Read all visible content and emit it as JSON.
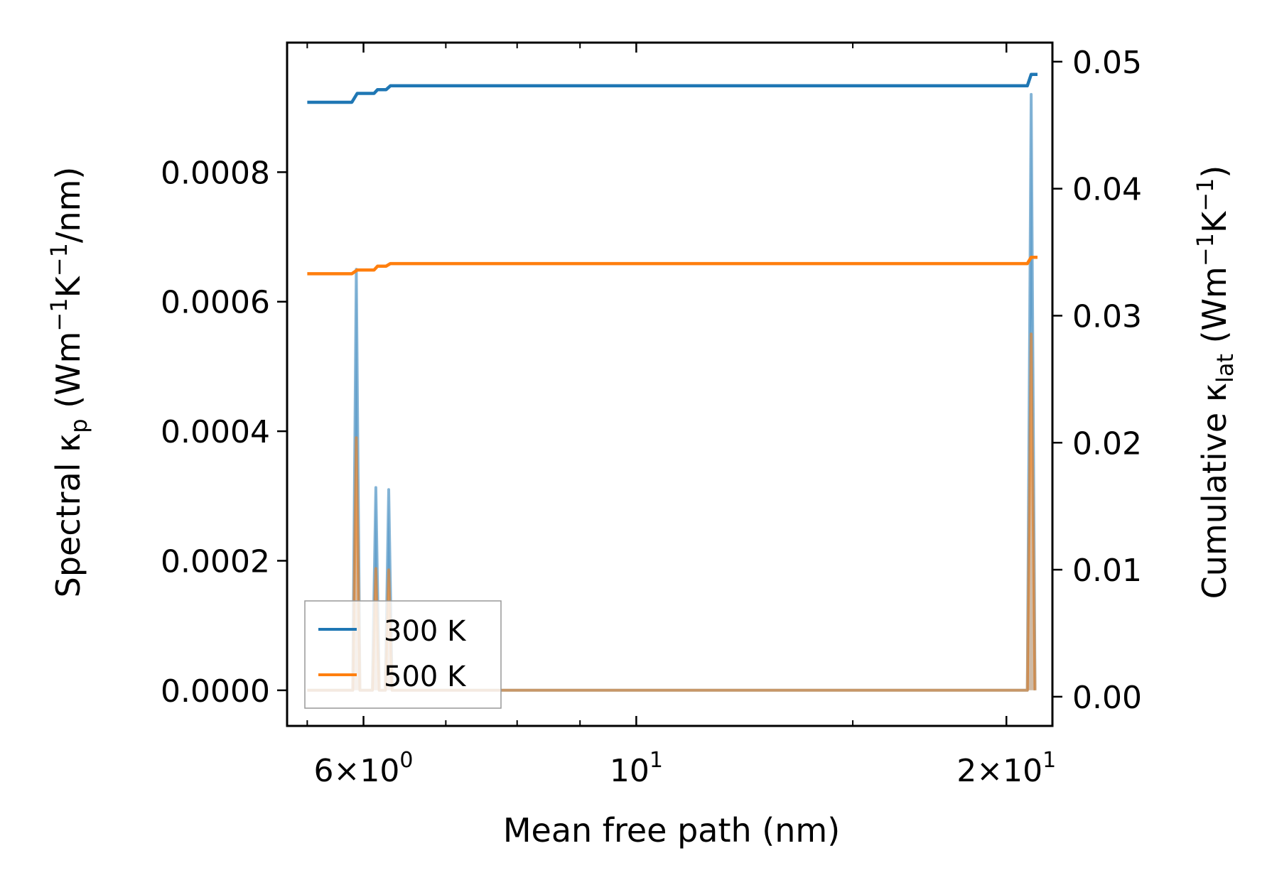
{
  "chart_data": {
    "type": "line",
    "xlabel": "Mean free path (nm)",
    "xscale": "log",
    "xlim": [
      5.2,
      21.8
    ],
    "x_ticks": [
      {
        "value": 6,
        "mantissa": "6",
        "exponent": "0"
      },
      {
        "value": 10,
        "mantissa": "",
        "exponent": "1"
      },
      {
        "value": 20,
        "mantissa": "2",
        "exponent": "1"
      }
    ],
    "x_minor_ticks": [
      5.4,
      7,
      8,
      9,
      15
    ],
    "y_left": {
      "label_prefix": "Spectral κ",
      "label_sub": "p",
      "label_suffix": " (Wm",
      "label_exp1": "−1",
      "label_mid": "K",
      "label_exp2": "−1",
      "label_end": "/nm)",
      "lim": [
        -5.5e-05,
        0.001
      ],
      "ticks": [
        "0.0000",
        "0.0002",
        "0.0004",
        "0.0006",
        "0.0008"
      ]
    },
    "y_right": {
      "label_prefix": "Cumulative κ",
      "label_sub": "lat",
      "label_suffix": " (Wm",
      "label_exp1": "−1",
      "label_mid": "K",
      "label_exp2": "−1",
      "label_end": ")",
      "lim": [
        -0.0023,
        0.0515
      ],
      "ticks": [
        "0.00",
        "0.01",
        "0.02",
        "0.03",
        "0.04",
        "0.05"
      ]
    },
    "series": [
      {
        "name": "300 K",
        "color": "#1f77b4",
        "spectral": [
          {
            "x": 5.4,
            "y": 0.0
          },
          {
            "x": 5.88,
            "y": 0.0
          },
          {
            "x": 5.92,
            "y": 0.00065
          },
          {
            "x": 5.96,
            "y": 0.0
          },
          {
            "x": 6.1,
            "y": 0.0
          },
          {
            "x": 6.14,
            "y": 0.000313
          },
          {
            "x": 6.18,
            "y": 0.0
          },
          {
            "x": 6.25,
            "y": 0.0
          },
          {
            "x": 6.29,
            "y": 0.00031
          },
          {
            "x": 6.33,
            "y": 0.0
          },
          {
            "x": 20.8,
            "y": 0.0
          },
          {
            "x": 20.95,
            "y": 0.00092
          },
          {
            "x": 21.1,
            "y": 0.0
          }
        ],
        "cumulative": [
          {
            "x": 5.4,
            "y": 0.0468
          },
          {
            "x": 5.87,
            "y": 0.0468
          },
          {
            "x": 5.93,
            "y": 0.0475
          },
          {
            "x": 6.12,
            "y": 0.0475
          },
          {
            "x": 6.16,
            "y": 0.0478
          },
          {
            "x": 6.26,
            "y": 0.0478
          },
          {
            "x": 6.31,
            "y": 0.0481
          },
          {
            "x": 20.8,
            "y": 0.0481
          },
          {
            "x": 20.95,
            "y": 0.049
          },
          {
            "x": 21.2,
            "y": 0.049
          }
        ]
      },
      {
        "name": "500 K",
        "color": "#ff7f0e",
        "spectral": [
          {
            "x": 5.4,
            "y": 0.0
          },
          {
            "x": 5.88,
            "y": 0.0
          },
          {
            "x": 5.92,
            "y": 0.00039
          },
          {
            "x": 5.96,
            "y": 0.0
          },
          {
            "x": 6.1,
            "y": 0.0
          },
          {
            "x": 6.14,
            "y": 0.000188
          },
          {
            "x": 6.18,
            "y": 0.0
          },
          {
            "x": 6.25,
            "y": 0.0
          },
          {
            "x": 6.29,
            "y": 0.000186
          },
          {
            "x": 6.33,
            "y": 0.0
          },
          {
            "x": 20.8,
            "y": 0.0
          },
          {
            "x": 20.95,
            "y": 0.00055
          },
          {
            "x": 21.1,
            "y": 0.0
          }
        ],
        "cumulative": [
          {
            "x": 5.4,
            "y": 0.0333
          },
          {
            "x": 5.87,
            "y": 0.0333
          },
          {
            "x": 5.93,
            "y": 0.0336
          },
          {
            "x": 6.12,
            "y": 0.0336
          },
          {
            "x": 6.16,
            "y": 0.0339
          },
          {
            "x": 6.26,
            "y": 0.0339
          },
          {
            "x": 6.31,
            "y": 0.0341
          },
          {
            "x": 20.8,
            "y": 0.0341
          },
          {
            "x": 20.95,
            "y": 0.0346
          },
          {
            "x": 21.2,
            "y": 0.0346
          }
        ]
      }
    ],
    "legend": {
      "placement": "lower-left"
    }
  }
}
